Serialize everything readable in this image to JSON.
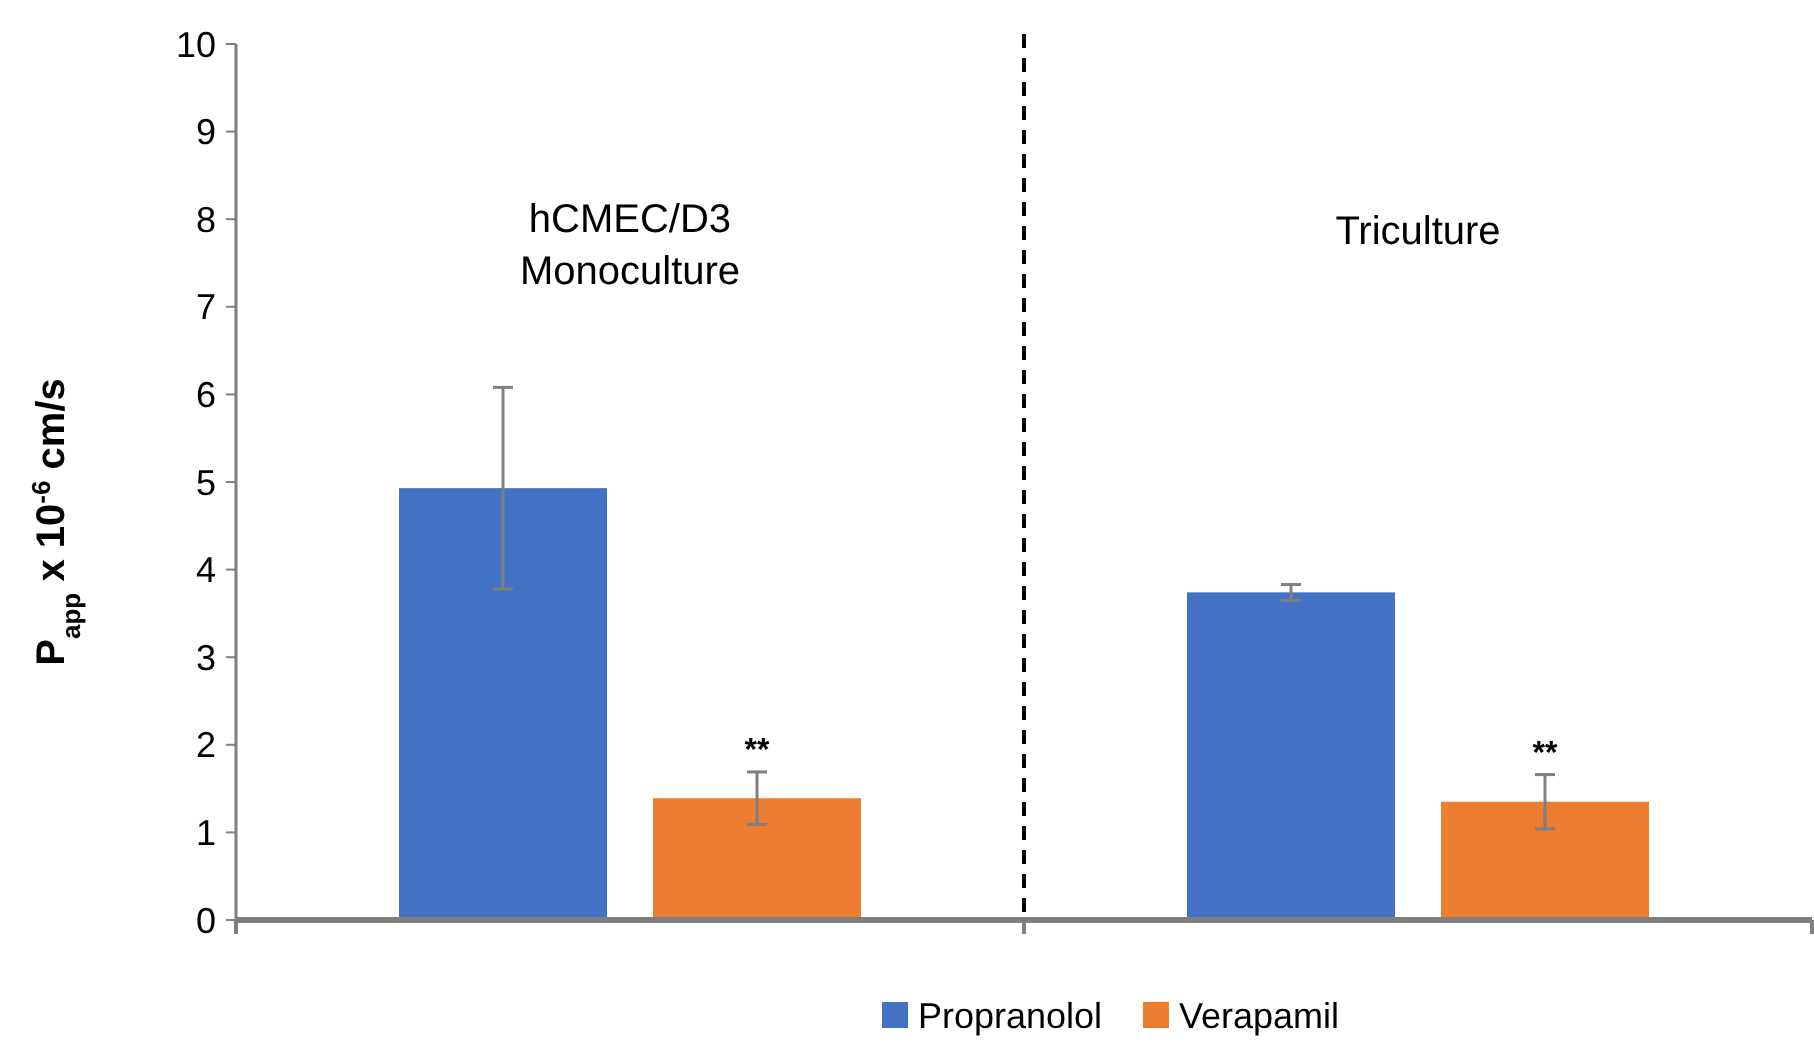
{
  "chart_data": {
    "type": "bar",
    "ylabel": "P$_{app}$ x 10$^{-6}$ cm/s",
    "categories": [
      "hCMEC/D3 Monoculture",
      "Triculture"
    ],
    "series": [
      {
        "name": "Propranolol",
        "color": "#4472c4",
        "values": [
          4.93,
          3.74
        ],
        "errors": [
          1.15,
          0.09
        ]
      },
      {
        "name": "Verapamil",
        "color": "#ed7d31",
        "values": [
          1.39,
          1.35
        ],
        "errors": [
          0.3,
          0.31
        ]
      }
    ],
    "ylim": [
      0,
      10
    ],
    "yticks": [
      0,
      1,
      2,
      3,
      4,
      5,
      6,
      7,
      8,
      9,
      10
    ],
    "grid": false,
    "legend": "bottom",
    "annotations": [
      "**",
      "**"
    ]
  }
}
